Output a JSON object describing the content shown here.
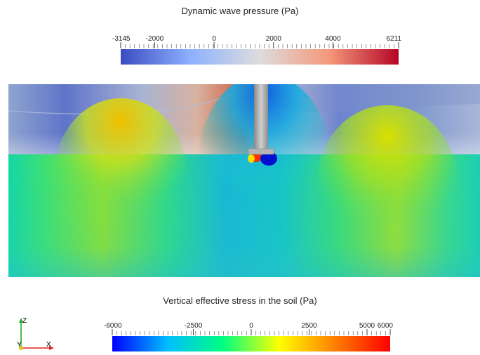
{
  "wave_colorbar": {
    "title": "Dynamic wave pressure (Pa)",
    "min": -3145,
    "max": 6211,
    "tick_labels": [
      "-3145",
      "-2000",
      "0",
      "2000",
      "4000",
      "6211"
    ],
    "tick_values": [
      -3145,
      -2000,
      0,
      2000,
      4000,
      6211
    ],
    "colormap": "cool-to-warm",
    "colors": [
      "#3b4cc0",
      "#8db0fe",
      "#dddddd",
      "#f4987a",
      "#b40426"
    ]
  },
  "soil_colorbar": {
    "title": "Vertical effective stress in the soil (Pa)",
    "min": -6000,
    "max": 6000,
    "tick_labels": [
      "-6000",
      "-2500",
      "0",
      "2500",
      "5000",
      "6000"
    ],
    "tick_values": [
      -6000,
      -2500,
      0,
      2500,
      5000,
      6000
    ],
    "colormap": "jet",
    "colors": [
      "#0000ff",
      "#00bfff",
      "#00ff80",
      "#ffff00",
      "#ff8000",
      "#ff0000"
    ]
  },
  "orientation_axes": {
    "z_label": "Z",
    "y_label": "Y",
    "x_label": "X"
  }
}
